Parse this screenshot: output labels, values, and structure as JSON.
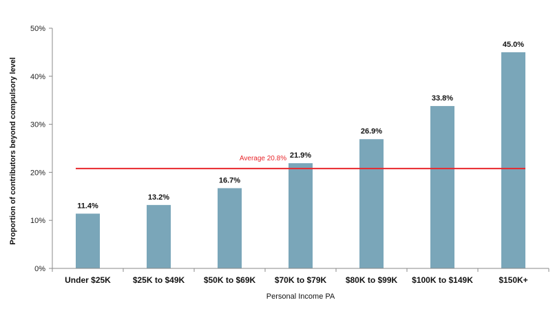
{
  "chart_data": {
    "type": "bar",
    "title": "",
    "xlabel": "Personal Income PA",
    "ylabel": "Proportion of contributors beyond compulsory level",
    "categories": [
      "Under $25K",
      "$25K to $49K",
      "$50K to $69K",
      "$70K to $79K",
      "$80K to $99K",
      "$100K to $149K",
      "$150K+"
    ],
    "values": [
      11.4,
      13.2,
      16.7,
      21.9,
      26.9,
      33.8,
      45.0
    ],
    "value_labels": [
      "11.4%",
      "13.2%",
      "16.7%",
      "21.9%",
      "26.9%",
      "33.8%",
      "45.0%"
    ],
    "ylim": [
      0,
      50
    ],
    "yticks": [
      0,
      10,
      20,
      30,
      40,
      50
    ],
    "ytick_labels": [
      "0%",
      "10%",
      "20%",
      "30%",
      "40%",
      "50%"
    ],
    "grid": false,
    "average": {
      "value": 20.8,
      "label": "Average 20.8%"
    },
    "colors": {
      "bar": "#7aa6b9",
      "average_line": "#e8262b",
      "axis": "#888888"
    }
  }
}
